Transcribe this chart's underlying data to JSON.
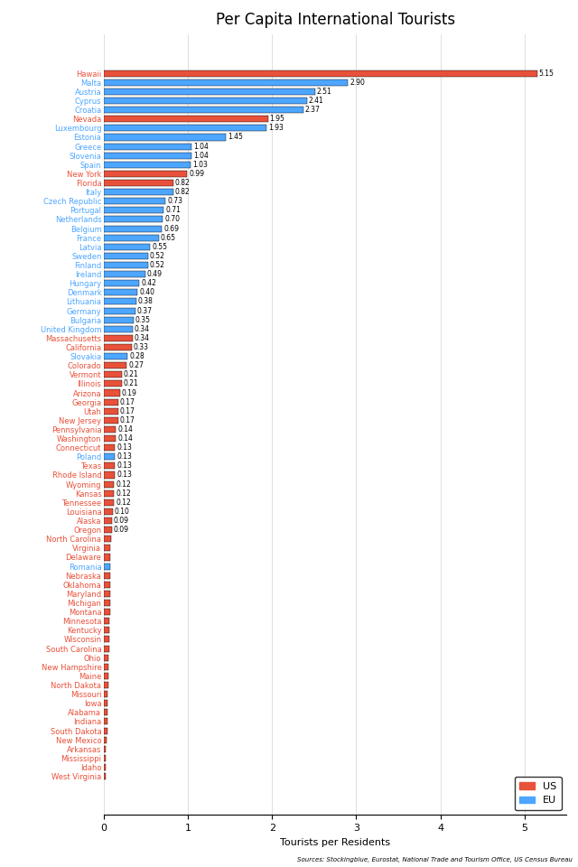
{
  "title": "Per Capita International Tourists",
  "xlabel": "Tourists per Residents",
  "source": "Sources: Stockingblue, Eurostat, National Trade and Tourism Office, US Census Bureau",
  "categories": [
    "Hawaii",
    "Malta",
    "Austria",
    "Cyprus",
    "Croatia",
    "Nevada",
    "Luxembourg",
    "Estonia",
    "Greece",
    "Slovenia",
    "Spain",
    "New York",
    "Florida",
    "Italy",
    "Czech Republic",
    "Portugal",
    "Netherlands",
    "Belgium",
    "France",
    "Latvia",
    "Sweden",
    "Finland",
    "Ireland",
    "Hungary",
    "Denmark",
    "Lithuania",
    "Germany",
    "Bulgaria",
    "United Kingdom",
    "Massachusetts",
    "California",
    "Slovakia",
    "Colorado",
    "Vermont",
    "Illinois",
    "Arizona",
    "Georgia",
    "Utah",
    "New Jersey",
    "Pennsylvania",
    "Washington",
    "Connecticut",
    "Poland",
    "Texas",
    "Rhode Island",
    "Wyoming",
    "Kansas",
    "Tennessee",
    "Louisiana",
    "Alaska",
    "Oregon",
    "North Carolina",
    "Virginia",
    "Delaware",
    "Romania",
    "Nebraska",
    "Oklahoma",
    "Maryland",
    "Michigan",
    "Montana",
    "Minnesota",
    "Kentucky",
    "Wisconsin",
    "South Carolina",
    "Ohio",
    "New Hampshire",
    "Maine",
    "North Dakota",
    "Missouri",
    "Iowa",
    "Alabama",
    "Indiana",
    "South Dakota",
    "New Mexico",
    "Arkansas",
    "Mississippi",
    "Idaho",
    "West Virginia"
  ],
  "values": [
    5.15,
    2.9,
    2.51,
    2.41,
    2.37,
    1.95,
    1.93,
    1.45,
    1.04,
    1.04,
    1.03,
    0.99,
    0.82,
    0.82,
    0.73,
    0.71,
    0.7,
    0.69,
    0.65,
    0.55,
    0.52,
    0.52,
    0.49,
    0.42,
    0.4,
    0.38,
    0.37,
    0.35,
    0.34,
    0.34,
    0.33,
    0.28,
    0.27,
    0.21,
    0.21,
    0.19,
    0.17,
    0.17,
    0.17,
    0.14,
    0.14,
    0.13,
    0.13,
    0.13,
    0.13,
    0.12,
    0.12,
    0.12,
    0.1,
    0.09,
    0.09,
    0.08,
    0.07,
    0.07,
    0.07,
    0.07,
    0.07,
    0.07,
    0.07,
    0.07,
    0.06,
    0.06,
    0.06,
    0.06,
    0.05,
    0.05,
    0.05,
    0.05,
    0.04,
    0.04,
    0.04,
    0.04,
    0.04,
    0.03,
    0.02,
    0.02,
    0.02,
    0.02
  ],
  "colors": [
    "#e8513a",
    "#4da6ff",
    "#4da6ff",
    "#4da6ff",
    "#4da6ff",
    "#e8513a",
    "#4da6ff",
    "#4da6ff",
    "#4da6ff",
    "#4da6ff",
    "#4da6ff",
    "#e8513a",
    "#e8513a",
    "#4da6ff",
    "#4da6ff",
    "#4da6ff",
    "#4da6ff",
    "#4da6ff",
    "#4da6ff",
    "#4da6ff",
    "#4da6ff",
    "#4da6ff",
    "#4da6ff",
    "#4da6ff",
    "#4da6ff",
    "#4da6ff",
    "#4da6ff",
    "#4da6ff",
    "#4da6ff",
    "#e8513a",
    "#e8513a",
    "#4da6ff",
    "#e8513a",
    "#e8513a",
    "#e8513a",
    "#e8513a",
    "#e8513a",
    "#e8513a",
    "#e8513a",
    "#e8513a",
    "#e8513a",
    "#e8513a",
    "#4da6ff",
    "#e8513a",
    "#e8513a",
    "#e8513a",
    "#e8513a",
    "#e8513a",
    "#e8513a",
    "#e8513a",
    "#e8513a",
    "#e8513a",
    "#e8513a",
    "#e8513a",
    "#4da6ff",
    "#e8513a",
    "#e8513a",
    "#e8513a",
    "#e8513a",
    "#e8513a",
    "#e8513a",
    "#e8513a",
    "#e8513a",
    "#e8513a",
    "#e8513a",
    "#e8513a",
    "#e8513a",
    "#e8513a",
    "#e8513a",
    "#e8513a",
    "#e8513a",
    "#e8513a",
    "#e8513a",
    "#e8513a",
    "#e8513a",
    "#e8513a",
    "#e8513a",
    "#e8513a"
  ],
  "label_colors": [
    "#e8513a",
    "#4da6ff",
    "#4da6ff",
    "#4da6ff",
    "#4da6ff",
    "#e8513a",
    "#4da6ff",
    "#4da6ff",
    "#4da6ff",
    "#4da6ff",
    "#4da6ff",
    "#e8513a",
    "#e8513a",
    "#4da6ff",
    "#4da6ff",
    "#4da6ff",
    "#4da6ff",
    "#4da6ff",
    "#4da6ff",
    "#4da6ff",
    "#4da6ff",
    "#4da6ff",
    "#4da6ff",
    "#4da6ff",
    "#4da6ff",
    "#4da6ff",
    "#4da6ff",
    "#4da6ff",
    "#4da6ff",
    "#e8513a",
    "#e8513a",
    "#4da6ff",
    "#e8513a",
    "#e8513a",
    "#e8513a",
    "#e8513a",
    "#e8513a",
    "#e8513a",
    "#e8513a",
    "#e8513a",
    "#e8513a",
    "#e8513a",
    "#4da6ff",
    "#e8513a",
    "#e8513a",
    "#e8513a",
    "#e8513a",
    "#e8513a",
    "#e8513a",
    "#e8513a",
    "#e8513a",
    "#e8513a",
    "#e8513a",
    "#e8513a",
    "#4da6ff",
    "#e8513a",
    "#e8513a",
    "#e8513a",
    "#e8513a",
    "#e8513a",
    "#e8513a",
    "#e8513a",
    "#e8513a",
    "#e8513a",
    "#e8513a",
    "#e8513a",
    "#e8513a",
    "#e8513a",
    "#e8513a",
    "#e8513a",
    "#e8513a",
    "#e8513a",
    "#e8513a",
    "#e8513a",
    "#e8513a",
    "#e8513a",
    "#e8513a",
    "#e8513a"
  ],
  "show_value_threshold": 0.09,
  "us_color": "#e8513a",
  "eu_color": "#4da6ff",
  "bar_height": 0.7,
  "xlim": [
    0,
    5.5
  ],
  "xticks": [
    0,
    1,
    2,
    3,
    4,
    5
  ],
  "title_fontsize": 12,
  "label_fontsize": 6.0,
  "value_fontsize": 5.5
}
